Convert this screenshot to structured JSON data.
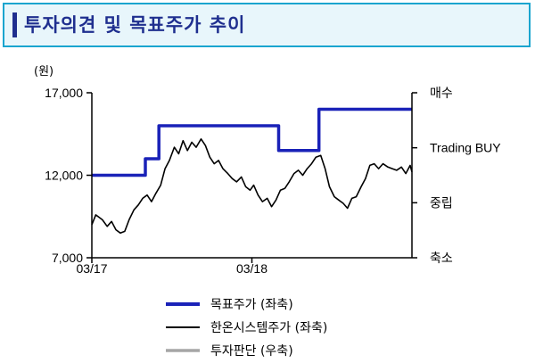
{
  "title": "투자의견 및 목표주가 추이",
  "chart_data": {
    "type": "line",
    "unit_label": "(원)",
    "x_ticks": [
      "03/17",
      "03/18"
    ],
    "x_range": [
      "2017-03",
      "2019-03"
    ],
    "left_axis": {
      "ylim": [
        7000,
        17000
      ],
      "ticks": [
        "7,000",
        "12,000",
        "17,000"
      ]
    },
    "right_axis": {
      "categories": [
        "축소",
        "중립",
        "Trading BUY",
        "매수"
      ]
    },
    "grid": false,
    "legend_position": "bottom",
    "series": [
      {
        "name": "목표주가 (좌축)",
        "color": "#1a22b8",
        "axis": "left",
        "step": true,
        "points": [
          [
            "2017-03",
            12000
          ],
          [
            "2017-07",
            12000
          ],
          [
            "2017-07",
            13000
          ],
          [
            "2017-08",
            13000
          ],
          [
            "2017-08",
            15000
          ],
          [
            "2018-05",
            15000
          ],
          [
            "2018-05",
            13500
          ],
          [
            "2018-08",
            13500
          ],
          [
            "2018-08",
            16000
          ],
          [
            "2019-03",
            16000
          ]
        ]
      },
      {
        "name": "한온시스템주가 (좌축)",
        "color": "#000000",
        "axis": "left",
        "points": [
          [
            "2017-03",
            9000
          ],
          [
            "2017-03-10",
            9600
          ],
          [
            "2017-03-25",
            9300
          ],
          [
            "2017-04-05",
            8900
          ],
          [
            "2017-04-15",
            9200
          ],
          [
            "2017-04-25",
            8700
          ],
          [
            "2017-05-05",
            8500
          ],
          [
            "2017-05-15",
            8600
          ],
          [
            "2017-05-25",
            9300
          ],
          [
            "2017-06-05",
            9900
          ],
          [
            "2017-06-15",
            10200
          ],
          [
            "2017-06-25",
            10600
          ],
          [
            "2017-07-05",
            10800
          ],
          [
            "2017-07-15",
            10400
          ],
          [
            "2017-07-25",
            10900
          ],
          [
            "2017-08-05",
            11400
          ],
          [
            "2017-08-15",
            12400
          ],
          [
            "2017-08-25",
            12900
          ],
          [
            "2017-09-05",
            13700
          ],
          [
            "2017-09-15",
            13300
          ],
          [
            "2017-09-25",
            14100
          ],
          [
            "2017-10-05",
            13500
          ],
          [
            "2017-10-15",
            14000
          ],
          [
            "2017-10-25",
            13700
          ],
          [
            "2017-11-05",
            14200
          ],
          [
            "2017-11-15",
            13800
          ],
          [
            "2017-11-25",
            13100
          ],
          [
            "2017-12-05",
            12700
          ],
          [
            "2017-12-15",
            12900
          ],
          [
            "2017-12-25",
            12400
          ],
          [
            "2018-01-05",
            12100
          ],
          [
            "2018-01-15",
            11800
          ],
          [
            "2018-01-25",
            11600
          ],
          [
            "2018-02-05",
            11900
          ],
          [
            "2018-02-15",
            11300
          ],
          [
            "2018-02-25",
            11100
          ],
          [
            "2018-03-05",
            11400
          ],
          [
            "2018-03-15",
            10800
          ],
          [
            "2018-03-25",
            10400
          ],
          [
            "2018-04-05",
            10600
          ],
          [
            "2018-04-15",
            10100
          ],
          [
            "2018-04-25",
            10500
          ],
          [
            "2018-05-05",
            11100
          ],
          [
            "2018-05-15",
            11200
          ],
          [
            "2018-05-25",
            11600
          ],
          [
            "2018-06-05",
            12100
          ],
          [
            "2018-06-15",
            12300
          ],
          [
            "2018-06-25",
            12000
          ],
          [
            "2018-07-05",
            12400
          ],
          [
            "2018-07-15",
            12700
          ],
          [
            "2018-07-25",
            13100
          ],
          [
            "2018-08-05",
            13200
          ],
          [
            "2018-08-15",
            12400
          ],
          [
            "2018-08-25",
            11300
          ],
          [
            "2018-09-05",
            10700
          ],
          [
            "2018-09-15",
            10500
          ],
          [
            "2018-09-25",
            10300
          ],
          [
            "2018-10-05",
            10000
          ],
          [
            "2018-10-15",
            10600
          ],
          [
            "2018-10-25",
            10700
          ],
          [
            "2018-11-05",
            11300
          ],
          [
            "2018-11-15",
            11800
          ],
          [
            "2018-11-25",
            12600
          ],
          [
            "2018-12-05",
            12700
          ],
          [
            "2018-12-15",
            12400
          ],
          [
            "2018-12-25",
            12700
          ],
          [
            "2019-01-05",
            12500
          ],
          [
            "2019-01-15",
            12400
          ],
          [
            "2019-01-25",
            12300
          ],
          [
            "2019-02-05",
            12500
          ],
          [
            "2019-02-15",
            12100
          ],
          [
            "2019-02-25",
            12600
          ],
          [
            "2019-03",
            12200
          ]
        ]
      },
      {
        "name": "투자판단 (우축)",
        "color": "#a6a6a6",
        "axis": "right",
        "points": []
      }
    ]
  }
}
